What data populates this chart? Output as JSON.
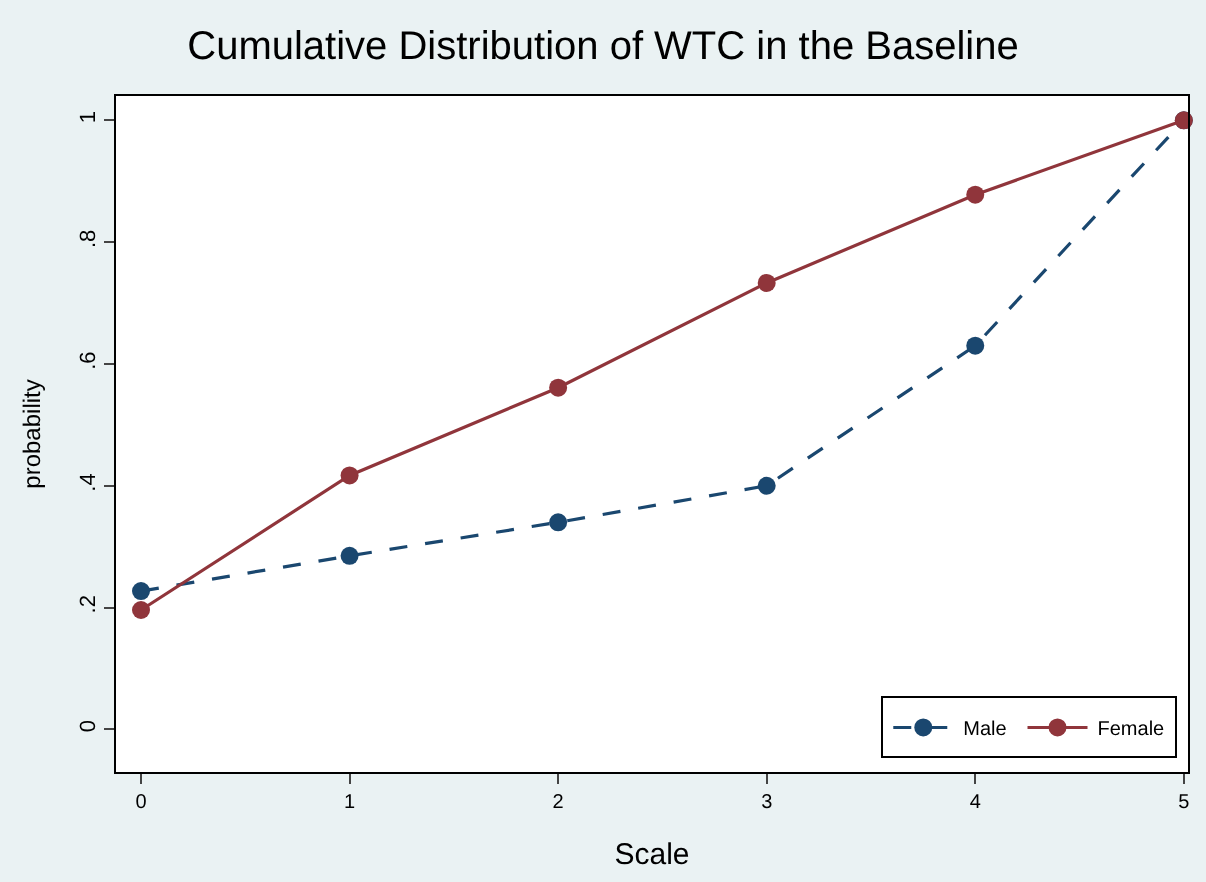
{
  "chart_data": {
    "type": "line",
    "title": "Cumulative Distribution of WTC in the Baseline",
    "xlabel": "Scale",
    "ylabel": "probability",
    "x": [
      0,
      1,
      2,
      3,
      4,
      5
    ],
    "series": [
      {
        "name": "Male",
        "color": "#1a476f",
        "line_style": "dashed",
        "values": [
          0.227,
          0.285,
          0.34,
          0.4,
          0.63,
          1.0
        ]
      },
      {
        "name": "Female",
        "color": "#90353b",
        "line_style": "solid",
        "values": [
          0.196,
          0.417,
          0.561,
          0.733,
          0.878,
          1.0
        ]
      }
    ],
    "xlim": [
      -0.12,
      5.02
    ],
    "xticks": [
      0,
      1,
      2,
      3,
      4,
      5
    ],
    "ylim": [
      -0.07,
      1.04
    ],
    "yticks": [
      {
        "value": 0,
        "label": "0"
      },
      {
        "value": 0.2,
        "label": ".2"
      },
      {
        "value": 0.4,
        "label": ".4"
      },
      {
        "value": 0.6,
        "label": ".6"
      },
      {
        "value": 0.8,
        "label": ".8"
      },
      {
        "value": 1,
        "label": "1"
      }
    ],
    "marker": "circle",
    "legend": "bottom right"
  }
}
